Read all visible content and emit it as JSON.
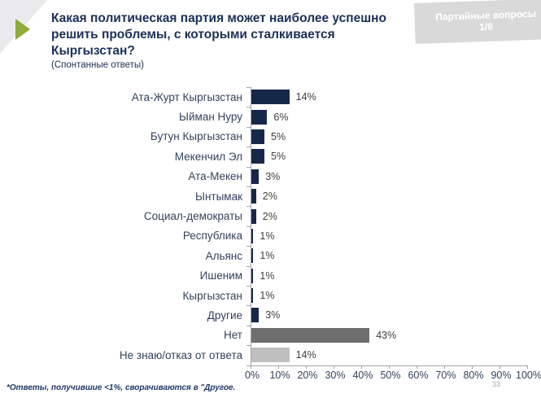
{
  "header": {
    "title": "Какая политическая партия может наиболее успешно решить проблемы, с которыми сталкивается Кыргызстан?",
    "subtitle": "(Спонтанные ответы)",
    "badge": {
      "line1": "Партийные вопросы",
      "line2": "1/8"
    }
  },
  "chart_data": {
    "type": "bar",
    "orientation": "horizontal",
    "title": "Какая политическая партия может наиболее успешно решить проблемы, с которыми сталкивается Кыргызстан? (Спонтанные ответы)",
    "categories": [
      "Ата-Журт Кыргызстан",
      "Ыйман Нуру",
      "Бутун Кыргызстан",
      "Мекенчил Эл",
      "Ата-Мекен",
      "Ынтымак",
      "Социал-демократы",
      "Республика",
      "Альянс",
      "Ишеним",
      "Кыргызстан",
      "Другие",
      "Нет",
      "Не знаю/отказ от ответа"
    ],
    "values": [
      14,
      6,
      5,
      5,
      3,
      2,
      2,
      1,
      1,
      1,
      1,
      3,
      43,
      14
    ],
    "value_labels": [
      "14%",
      "6%",
      "5%",
      "5%",
      "3%",
      "2%",
      "2%",
      "1%",
      "1%",
      "1%",
      "1%",
      "3%",
      "43%",
      "14%"
    ],
    "bar_color_keys": [
      "primary",
      "primary",
      "primary",
      "primary",
      "primary",
      "primary",
      "primary",
      "primary",
      "primary",
      "primary",
      "primary",
      "primary",
      "no_answer_gray",
      "dont_know_light_gray"
    ],
    "colors": {
      "primary": "#16284A",
      "no_answer_gray": "#6E6E6E",
      "dont_know_light_gray": "#BFBFBF"
    },
    "x_ticks": [
      "0%",
      "10%",
      "20%",
      "30%",
      "40%",
      "50%",
      "60%",
      "70%",
      "80%",
      "90%",
      "100%"
    ],
    "xlim": [
      0,
      100
    ],
    "grid": false,
    "legend": false
  },
  "footnote": "*Ответы, получившие <1%, сворачиваются в \"Другое.",
  "page_number": "33",
  "accent_colors": {
    "green": "#8DAC3B",
    "navy": "#1C3157",
    "badge_gray": "#D9D9D9",
    "axis_gray": "#A6A6A6"
  }
}
